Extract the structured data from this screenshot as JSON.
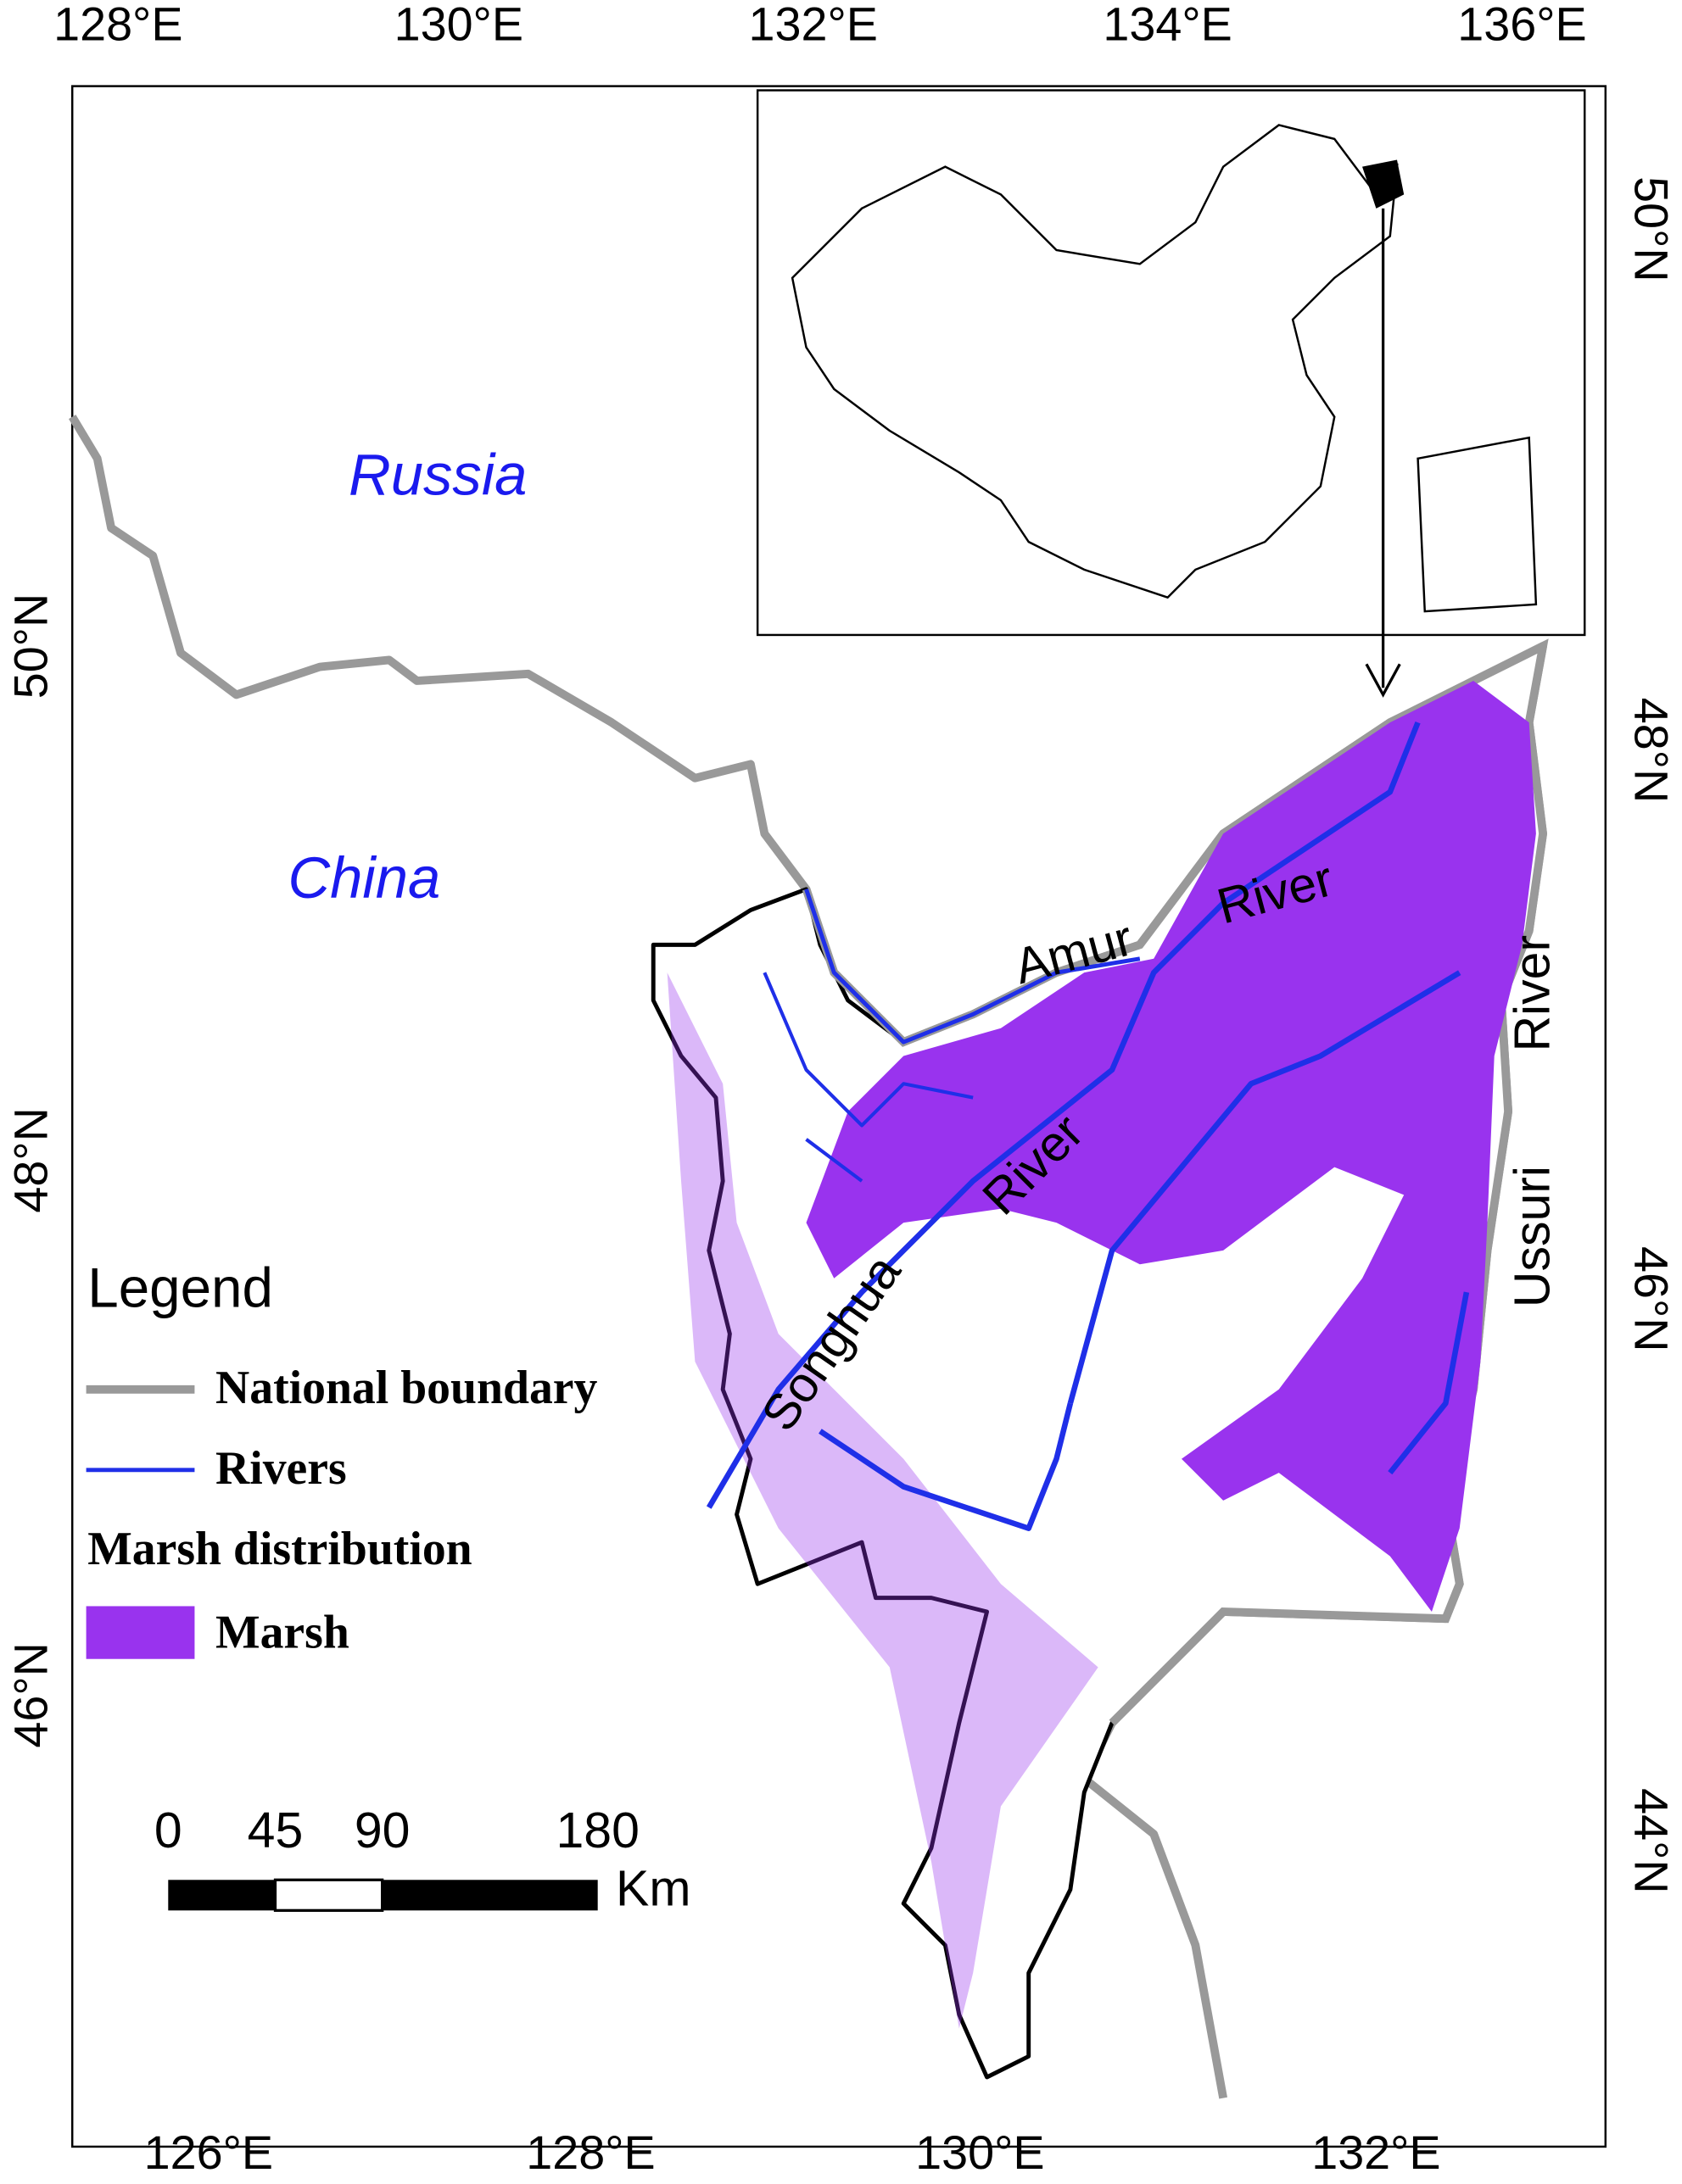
{
  "axes": {
    "top": [
      "128°E",
      "130°E",
      "132°E",
      "134°E",
      "136°E"
    ],
    "bottom": [
      "126°E",
      "128°E",
      "130°E",
      "132°E"
    ],
    "left": [
      "50°N",
      "48°N",
      "46°N"
    ],
    "right": [
      "50°N",
      "48°N",
      "46°N",
      "44°N"
    ]
  },
  "places": {
    "russia": "Russia",
    "china": "China"
  },
  "rivers": {
    "amur": "Amur",
    "amur_river": "River",
    "ussuri": "Ussuri",
    "ussuri_river": "River",
    "songhua": "Songhua",
    "songhua_river": "River"
  },
  "legend": {
    "title": "Legend",
    "boundary": "National boundary",
    "rivers": "Rivers",
    "marsh_heading": "Marsh distribution",
    "marsh": "Marsh"
  },
  "scale_bar": {
    "ticks": [
      "0",
      "45",
      "90",
      "180"
    ],
    "unit": "Km"
  }
}
